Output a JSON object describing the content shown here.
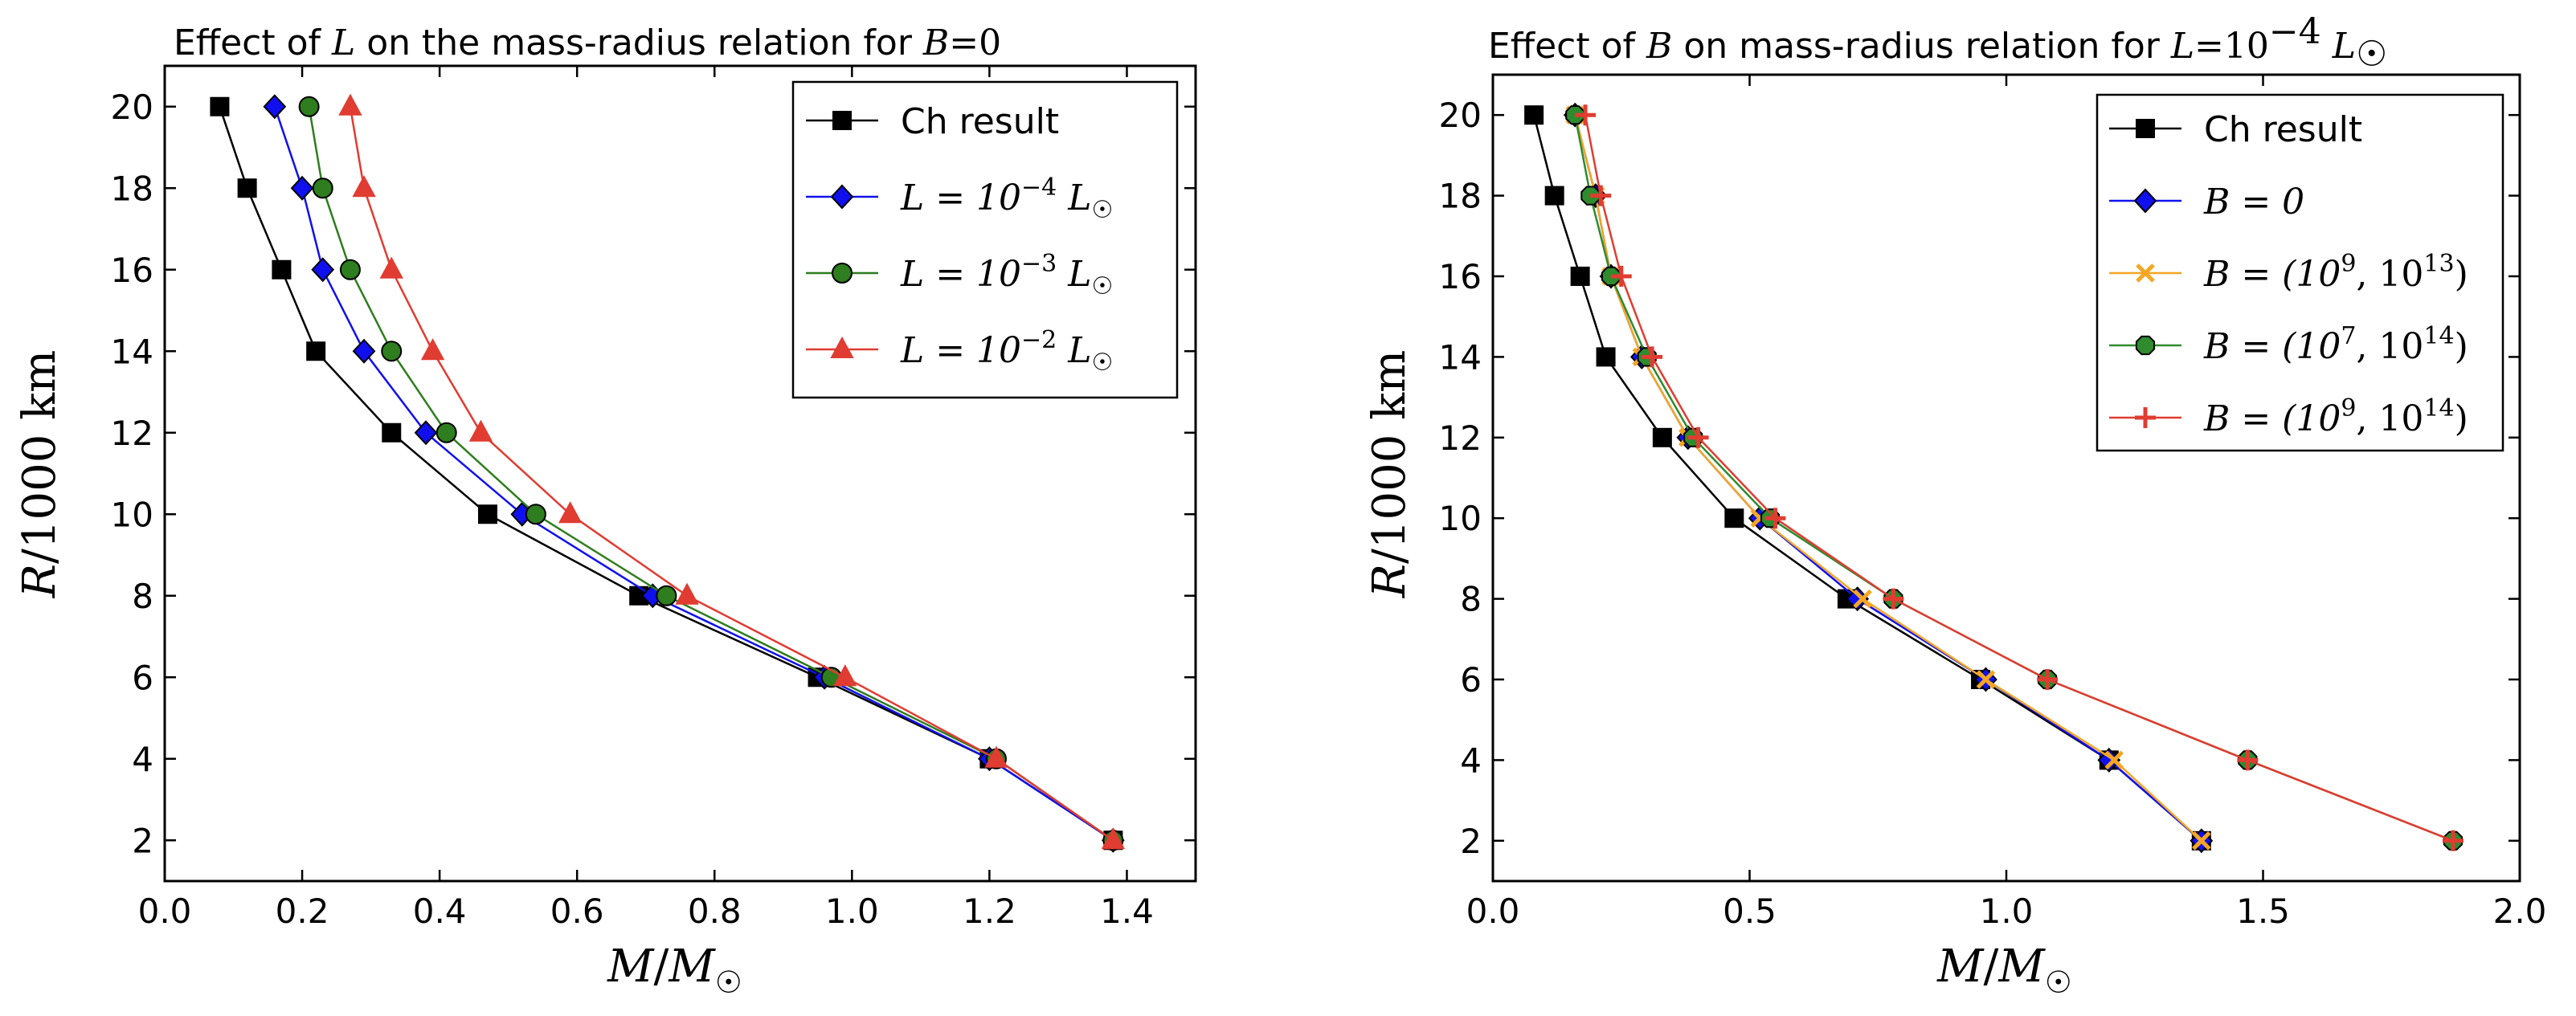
{
  "chart_data": [
    {
      "type": "line",
      "title": "Effect of L on the mass-radius relation for B = 0",
      "xlabel": "M/M☉",
      "ylabel": "R/1000 km",
      "xlim": [
        0.0,
        1.5
      ],
      "ylim": [
        1,
        21
      ],
      "xticks": [
        0.0,
        0.2,
        0.4,
        0.6,
        0.8,
        1.0,
        1.2,
        1.4
      ],
      "xtick_labels": [
        "0.0",
        "0.2",
        "0.4",
        "0.6",
        "0.8",
        "1.0",
        "1.2",
        "1.4"
      ],
      "yticks": [
        2,
        4,
        6,
        8,
        10,
        12,
        14,
        16,
        18,
        20
      ],
      "ytick_labels": [
        "2",
        "4",
        "6",
        "8",
        "10",
        "12",
        "14",
        "16",
        "18",
        "20"
      ],
      "legend_position": "top-right",
      "series": [
        {
          "name": "Ch result",
          "color": "#000000",
          "marker": "square",
          "x": [
            1.38,
            1.2,
            0.95,
            0.69,
            0.47,
            0.33,
            0.22,
            0.17,
            0.12,
            0.08
          ],
          "y": [
            2,
            4,
            6,
            8,
            10,
            12,
            14,
            16,
            18,
            20
          ]
        },
        {
          "name": "L = 10^-4 L☉",
          "color": "#1010ee",
          "marker": "diamond",
          "x": [
            1.38,
            1.2,
            0.96,
            0.71,
            0.52,
            0.38,
            0.29,
            0.23,
            0.2,
            0.16
          ],
          "y": [
            2,
            4,
            6,
            8,
            10,
            12,
            14,
            16,
            18,
            20
          ]
        },
        {
          "name": "L = 10^-3 L☉",
          "color": "#2e7d1e",
          "marker": "circle",
          "x": [
            1.38,
            1.21,
            0.97,
            0.73,
            0.54,
            0.41,
            0.33,
            0.27,
            0.23,
            0.21
          ],
          "y": [
            2,
            4,
            6,
            8,
            10,
            12,
            14,
            16,
            18,
            20
          ]
        },
        {
          "name": "L = 10^-2 L☉",
          "color": "#e03c31",
          "marker": "triangle",
          "x": [
            1.38,
            1.21,
            0.99,
            0.76,
            0.59,
            0.46,
            0.39,
            0.33,
            0.29,
            0.27
          ],
          "y": [
            2,
            4,
            6,
            8,
            10,
            12,
            14,
            16,
            18,
            20
          ]
        }
      ]
    },
    {
      "type": "line",
      "title": "Effect of B on mass-radius relation for L = 10^-4 L☉",
      "xlabel": "M/M☉",
      "ylabel": "R/1000 km",
      "xlim": [
        0.0,
        2.0
      ],
      "ylim": [
        1,
        21
      ],
      "xticks": [
        0.0,
        0.5,
        1.0,
        1.5,
        2.0
      ],
      "xtick_labels": [
        "0.0",
        "0.5",
        "1.0",
        "1.5",
        "2.0"
      ],
      "yticks": [
        2,
        4,
        6,
        8,
        10,
        12,
        14,
        16,
        18,
        20
      ],
      "ytick_labels": [
        "2",
        "4",
        "6",
        "8",
        "10",
        "12",
        "14",
        "16",
        "18",
        "20"
      ],
      "legend_position": "top-right",
      "series": [
        {
          "name": "Ch result",
          "color": "#000000",
          "marker": "square",
          "x": [
            1.38,
            1.2,
            0.95,
            0.69,
            0.47,
            0.33,
            0.22,
            0.17,
            0.12,
            0.08
          ],
          "y": [
            2,
            4,
            6,
            8,
            10,
            12,
            14,
            16,
            18,
            20
          ]
        },
        {
          "name": "B = 0",
          "color": "#1010ee",
          "marker": "diamond",
          "x": [
            1.38,
            1.2,
            0.96,
            0.71,
            0.52,
            0.38,
            0.29,
            0.23,
            0.2,
            0.16
          ],
          "y": [
            2,
            4,
            6,
            8,
            10,
            12,
            14,
            16,
            18,
            20
          ]
        },
        {
          "name": "B = (10^9, 10^13)",
          "color": "#f5a623",
          "marker": "x",
          "x": [
            1.38,
            1.21,
            0.96,
            0.72,
            0.52,
            0.38,
            0.29,
            0.23,
            0.2,
            0.16
          ],
          "y": [
            2,
            4,
            6,
            8,
            10,
            12,
            14,
            16,
            18,
            20
          ]
        },
        {
          "name": "B = (10^7, 10^14)",
          "color": "#2e8b2e",
          "marker": "octagon",
          "x": [
            1.87,
            1.47,
            1.08,
            0.78,
            0.54,
            0.39,
            0.3,
            0.23,
            0.19,
            0.16
          ],
          "y": [
            2,
            4,
            6,
            8,
            10,
            12,
            14,
            16,
            18,
            20
          ]
        },
        {
          "name": "B = (10^9, 10^14)",
          "color": "#e03c31",
          "marker": "plus",
          "x": [
            1.87,
            1.47,
            1.08,
            0.78,
            0.55,
            0.4,
            0.31,
            0.25,
            0.21,
            0.18
          ],
          "y": [
            2,
            4,
            6,
            8,
            10,
            12,
            14,
            16,
            18,
            20
          ]
        }
      ]
    }
  ]
}
